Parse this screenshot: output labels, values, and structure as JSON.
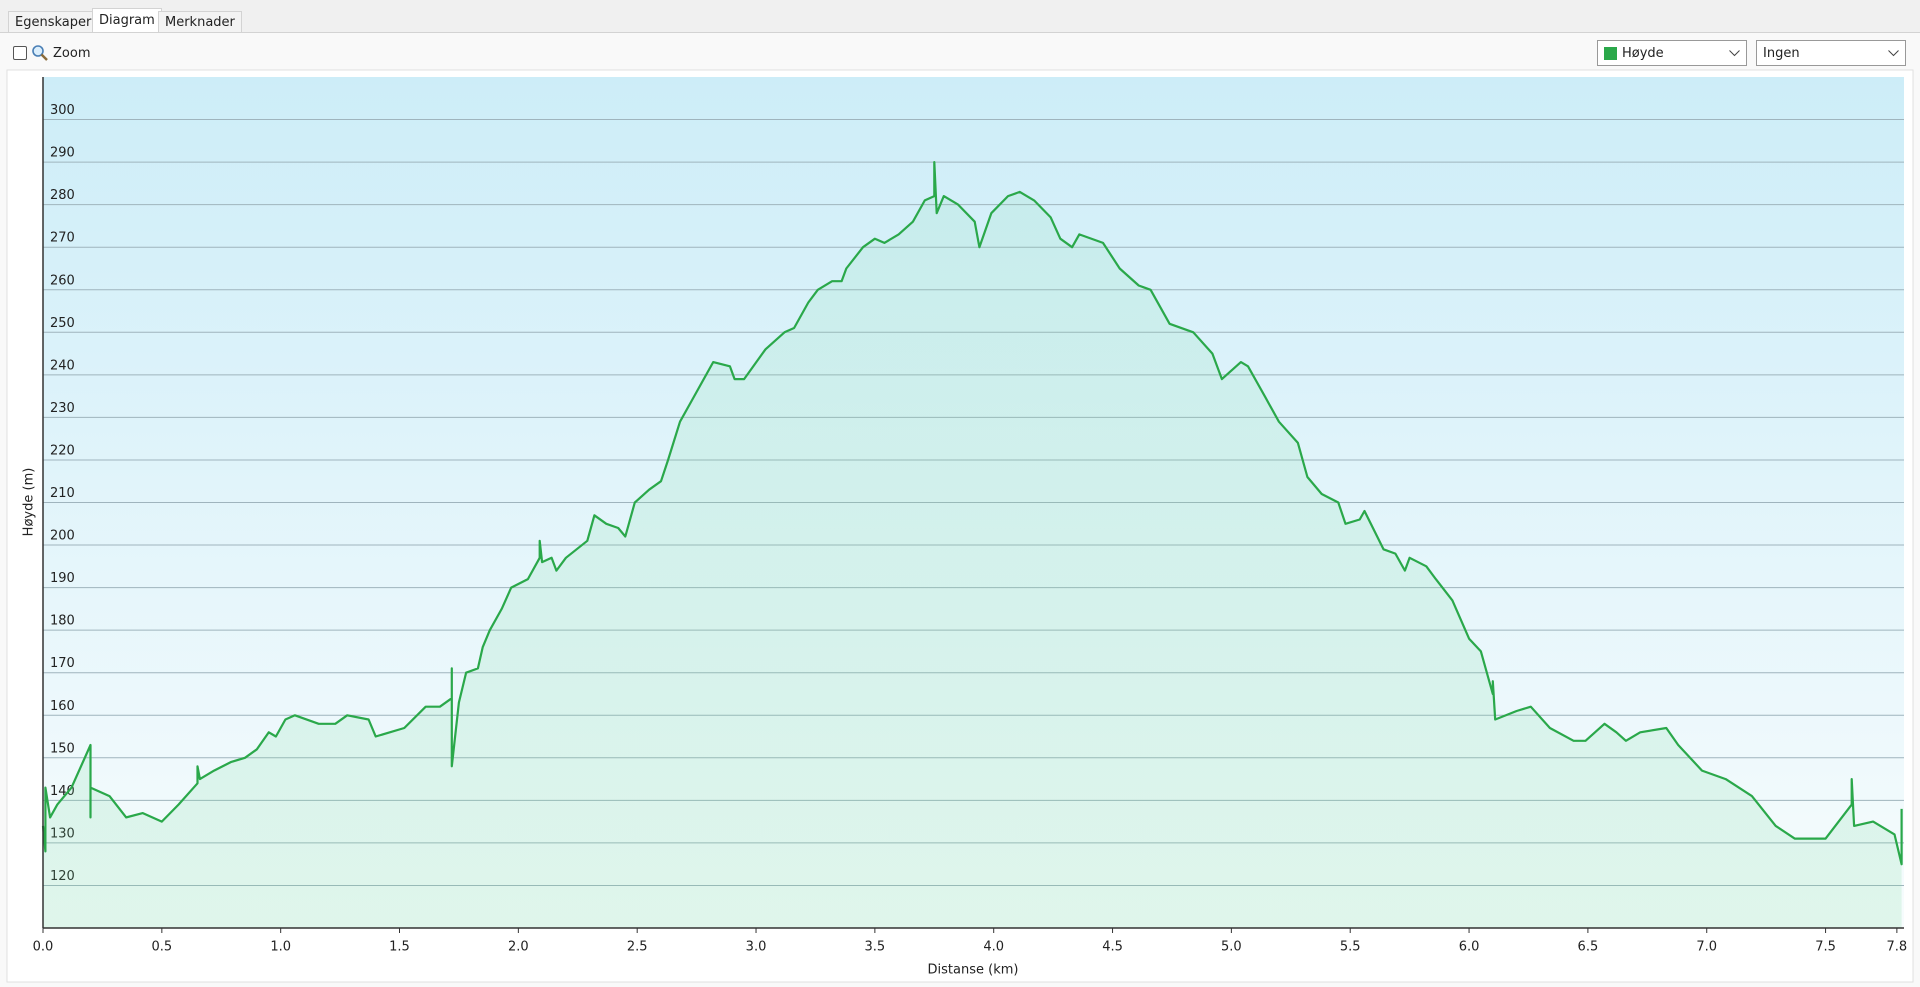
{
  "ui": {
    "tabs": [
      "Egenskaper",
      "Diagram",
      "Merknader"
    ],
    "zoom_label": "Zoom",
    "compare_select": "Ingen"
  },
  "chart_data": {
    "type": "line",
    "x_label": "Distanse  (km)",
    "y_label": "Høyde (m)",
    "x": [
      0,
      0.01,
      0.01,
      0.03,
      0.06,
      0.12,
      0.2,
      0.2,
      0.2,
      0.28,
      0.35,
      0.42,
      0.5,
      0.57,
      0.65,
      0.65,
      0.66,
      0.72,
      0.79,
      0.85,
      0.9,
      0.95,
      0.98,
      1.02,
      1.06,
      1.16,
      1.23,
      1.28,
      1.37,
      1.4,
      1.52,
      1.61,
      1.67,
      1.72,
      1.72,
      1.72,
      1.75,
      1.78,
      1.83,
      1.85,
      1.88,
      1.93,
      1.97,
      2.04,
      2.09,
      2.09,
      2.1,
      2.14,
      2.16,
      2.2,
      2.29,
      2.32,
      2.37,
      2.42,
      2.45,
      2.49,
      2.55,
      2.6,
      2.63,
      2.68,
      2.73,
      2.82,
      2.89,
      2.91,
      2.95,
      3.04,
      3.12,
      3.16,
      3.22,
      3.26,
      3.32,
      3.36,
      3.38,
      3.45,
      3.5,
      3.54,
      3.6,
      3.66,
      3.71,
      3.75,
      3.75,
      3.76,
      3.79,
      3.85,
      3.92,
      3.94,
      3.99,
      4.06,
      4.11,
      4.17,
      4.24,
      4.28,
      4.33,
      4.36,
      4.46,
      4.53,
      4.61,
      4.66,
      4.74,
      4.84,
      4.92,
      4.96,
      5.04,
      5.07,
      5.14,
      5.2,
      5.28,
      5.32,
      5.38,
      5.45,
      5.48,
      5.54,
      5.56,
      5.64,
      5.69,
      5.73,
      5.75,
      5.82,
      5.86,
      5.93,
      6.0,
      6.05,
      6.1,
      6.1,
      6.11,
      6.2,
      6.26,
      6.34,
      6.44,
      6.49,
      6.57,
      6.62,
      6.66,
      6.72,
      6.83,
      6.88,
      6.98,
      7.08,
      7.19,
      7.29,
      7.37,
      7.5,
      7.61,
      7.61,
      7.62,
      7.7,
      7.79,
      7.82,
      7.82
    ],
    "series": [
      {
        "name": "Høyde",
        "color": "#2aa84a",
        "values": [
          134,
          128,
          143,
          136,
          139,
          143,
          153,
          136,
          143,
          141,
          136,
          137,
          135,
          139,
          144,
          148,
          145,
          147,
          149,
          150,
          152,
          156,
          155,
          159,
          160,
          158,
          158,
          160,
          159,
          155,
          157,
          162,
          162,
          164,
          171,
          148,
          163,
          170,
          171,
          176,
          180,
          185,
          190,
          192,
          197,
          201,
          196,
          197,
          194,
          197,
          201,
          207,
          205,
          204,
          202,
          210,
          213,
          215,
          220,
          229,
          234,
          243,
          242,
          239,
          239,
          246,
          250,
          251,
          257,
          260,
          262,
          262,
          265,
          270,
          272,
          271,
          273,
          276,
          281,
          282,
          290,
          278,
          282,
          280,
          276,
          270,
          278,
          282,
          283,
          281,
          277,
          272,
          270,
          273,
          271,
          265,
          261,
          260,
          252,
          250,
          245,
          239,
          243,
          242,
          235,
          229,
          224,
          216,
          212,
          210,
          205,
          206,
          208,
          199,
          198,
          194,
          197,
          195,
          192,
          187,
          178,
          175,
          165,
          168,
          159,
          161,
          162,
          157,
          154,
          154,
          158,
          156,
          154,
          156,
          157,
          153,
          147,
          145,
          141,
          134,
          131,
          131,
          139,
          145,
          134,
          135,
          132,
          125,
          138
        ]
      }
    ],
    "xlim": [
      0,
      7.83
    ],
    "xticks": [
      {
        "value": 0,
        "label": "0.0"
      },
      0.5,
      {
        "value": 1,
        "label": "1.0"
      },
      1.5,
      {
        "value": 2,
        "label": "2.0"
      },
      2.5,
      {
        "value": 3,
        "label": "3.0"
      },
      3.5,
      {
        "value": 4,
        "label": "4.0"
      },
      4.5,
      {
        "value": 5,
        "label": "5.0"
      },
      5.5,
      {
        "value": 6,
        "label": "6.0"
      },
      6.5,
      {
        "value": 7,
        "label": "7.0"
      },
      7.5,
      7.8
    ],
    "ylim": [
      110,
      310
    ],
    "yticks": [
      120,
      130,
      140,
      150,
      160,
      170,
      180,
      190,
      200,
      210,
      220,
      230,
      240,
      250,
      260,
      270,
      280,
      290,
      300
    ],
    "grid": true
  }
}
